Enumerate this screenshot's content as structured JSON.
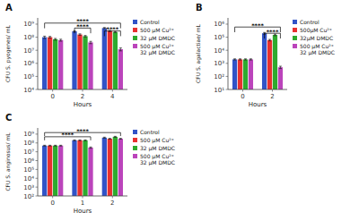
{
  "chart_data": [
    {
      "type": "bar",
      "title": "A",
      "x_label": "Hours",
      "y_label": "CFU S. pyogenes/ mL",
      "categories": [
        "0",
        "2",
        "4"
      ],
      "series": [
        {
          "name": "Control",
          "color": "#3153c7",
          "values": [
            100000000,
            280000000,
            500000000
          ],
          "errors": [
            20000000,
            30000000,
            50000000
          ]
        },
        {
          "name": "500 μM Cu²⁺",
          "color": "#e83030",
          "values": [
            100000000,
            160000000,
            300000000
          ],
          "errors": [
            15000000,
            20000000,
            30000000
          ]
        },
        {
          "name": "32 μM DMDC",
          "color": "#2eaa2e",
          "values": [
            70000000,
            120000000,
            250000000
          ],
          "errors": [
            10000000,
            15000000,
            25000000
          ]
        },
        {
          "name": "500 μM Cu²⁺\n32 μM DMDC",
          "color": "#bb44bb",
          "values": [
            60000000,
            40000000,
            12000000
          ],
          "errors": [
            10000000,
            8000000,
            3000000
          ]
        }
      ],
      "log": "y",
      "ylim": [
        10000,
        3000000000
      ],
      "yticks": [
        {
          "value": 10000,
          "label": "10⁴"
        },
        {
          "value": 100000,
          "label": "10⁵"
        },
        {
          "value": 1000000,
          "label": "10⁶"
        },
        {
          "value": 10000000,
          "label": "10⁷"
        },
        {
          "value": 100000000,
          "label": "10⁸"
        },
        {
          "value": 1000000000,
          "label": "10⁹"
        }
      ],
      "grid": false,
      "legend": "right",
      "annotations": [
        {
          "text": "****",
          "y": 1200000000,
          "from": [
            0,
            0
          ],
          "to": [
            2,
            3
          ]
        },
        {
          "text": "****",
          "y": 500000000,
          "from": [
            1,
            0
          ],
          "to": [
            1,
            3
          ]
        },
        {
          "text": "****",
          "y": 300000000,
          "from": [
            2,
            0
          ],
          "to": [
            2,
            3
          ]
        }
      ]
    },
    {
      "type": "bar",
      "title": "B",
      "x_label": "Hours",
      "y_label": "CFU S. agalactiae/ mL",
      "categories": [
        "0",
        "2"
      ],
      "series": [
        {
          "name": "Control",
          "color": "#3153c7",
          "values": [
            2000,
            200000
          ],
          "errors": [
            200,
            30000
          ]
        },
        {
          "name": "500μM Cu²⁺",
          "color": "#e83030",
          "values": [
            2000,
            60000
          ],
          "errors": [
            200,
            8000
          ]
        },
        {
          "name": "32μM DMDC",
          "color": "#2eaa2e",
          "values": [
            2000,
            150000
          ],
          "errors": [
            200,
            20000
          ]
        },
        {
          "name": "500 μM Cu²⁺\n32 μM DMDC",
          "color": "#bb44bb",
          "values": [
            2000,
            500
          ],
          "errors": [
            200,
            100
          ]
        }
      ],
      "log": "y",
      "ylim": [
        10,
        3000000
      ],
      "yticks": [
        {
          "value": 10,
          "label": "10¹"
        },
        {
          "value": 100,
          "label": "10²"
        },
        {
          "value": 1000,
          "label": "10³"
        },
        {
          "value": 10000,
          "label": "10⁴"
        },
        {
          "value": 100000,
          "label": "10⁵"
        },
        {
          "value": 1000000,
          "label": "10⁶"
        }
      ],
      "grid": false,
      "legend": "right",
      "annotations": [
        {
          "text": "****",
          "y": 600000,
          "from": [
            0,
            0
          ],
          "to": [
            1,
            3
          ]
        },
        {
          "text": "****",
          "y": 200000,
          "from": [
            1,
            0
          ],
          "to": [
            1,
            3
          ]
        }
      ]
    },
    {
      "type": "bar",
      "title": "C",
      "x_label": "Hours",
      "y_label": "CFU S. anginosus/ mL",
      "categories": [
        "0",
        "1",
        "2"
      ],
      "series": [
        {
          "name": "Control",
          "color": "#3153c7",
          "values": [
            50000000,
            200000000,
            400000000
          ],
          "errors": [
            5000000,
            20000000,
            50000000
          ]
        },
        {
          "name": "500 μM Cu²⁺",
          "color": "#e83030",
          "values": [
            50000000,
            200000000,
            300000000
          ],
          "errors": [
            5000000,
            20000000,
            30000000
          ]
        },
        {
          "name": "32 μM DMDC",
          "color": "#2eaa2e",
          "values": [
            50000000,
            200000000,
            500000000
          ],
          "errors": [
            5000000,
            20000000,
            60000000
          ]
        },
        {
          "name": "500 μM Cu²⁺\n32 μM DMDC",
          "color": "#bb44bb",
          "values": [
            50000000,
            30000000,
            300000000
          ],
          "errors": [
            5000000,
            5000000,
            30000000
          ]
        }
      ],
      "log": "y",
      "ylim": [
        100,
        5000000000
      ],
      "yticks": [
        {
          "value": 100,
          "label": "10²"
        },
        {
          "value": 1000,
          "label": "10³"
        },
        {
          "value": 10000,
          "label": "10⁴"
        },
        {
          "value": 100000,
          "label": "10⁵"
        },
        {
          "value": 1000000,
          "label": "10⁶"
        },
        {
          "value": 10000000,
          "label": "10⁷"
        },
        {
          "value": 100000000,
          "label": "10⁸"
        },
        {
          "value": 1000000000,
          "label": "10⁹"
        }
      ],
      "grid": false,
      "legend": "right",
      "annotations": [
        {
          "text": "****",
          "y": 1500000000,
          "from": [
            0,
            0
          ],
          "to": [
            2,
            3
          ]
        },
        {
          "text": "****",
          "y": 500000000,
          "from": [
            0,
            0
          ],
          "to": [
            1,
            3
          ]
        }
      ]
    }
  ]
}
